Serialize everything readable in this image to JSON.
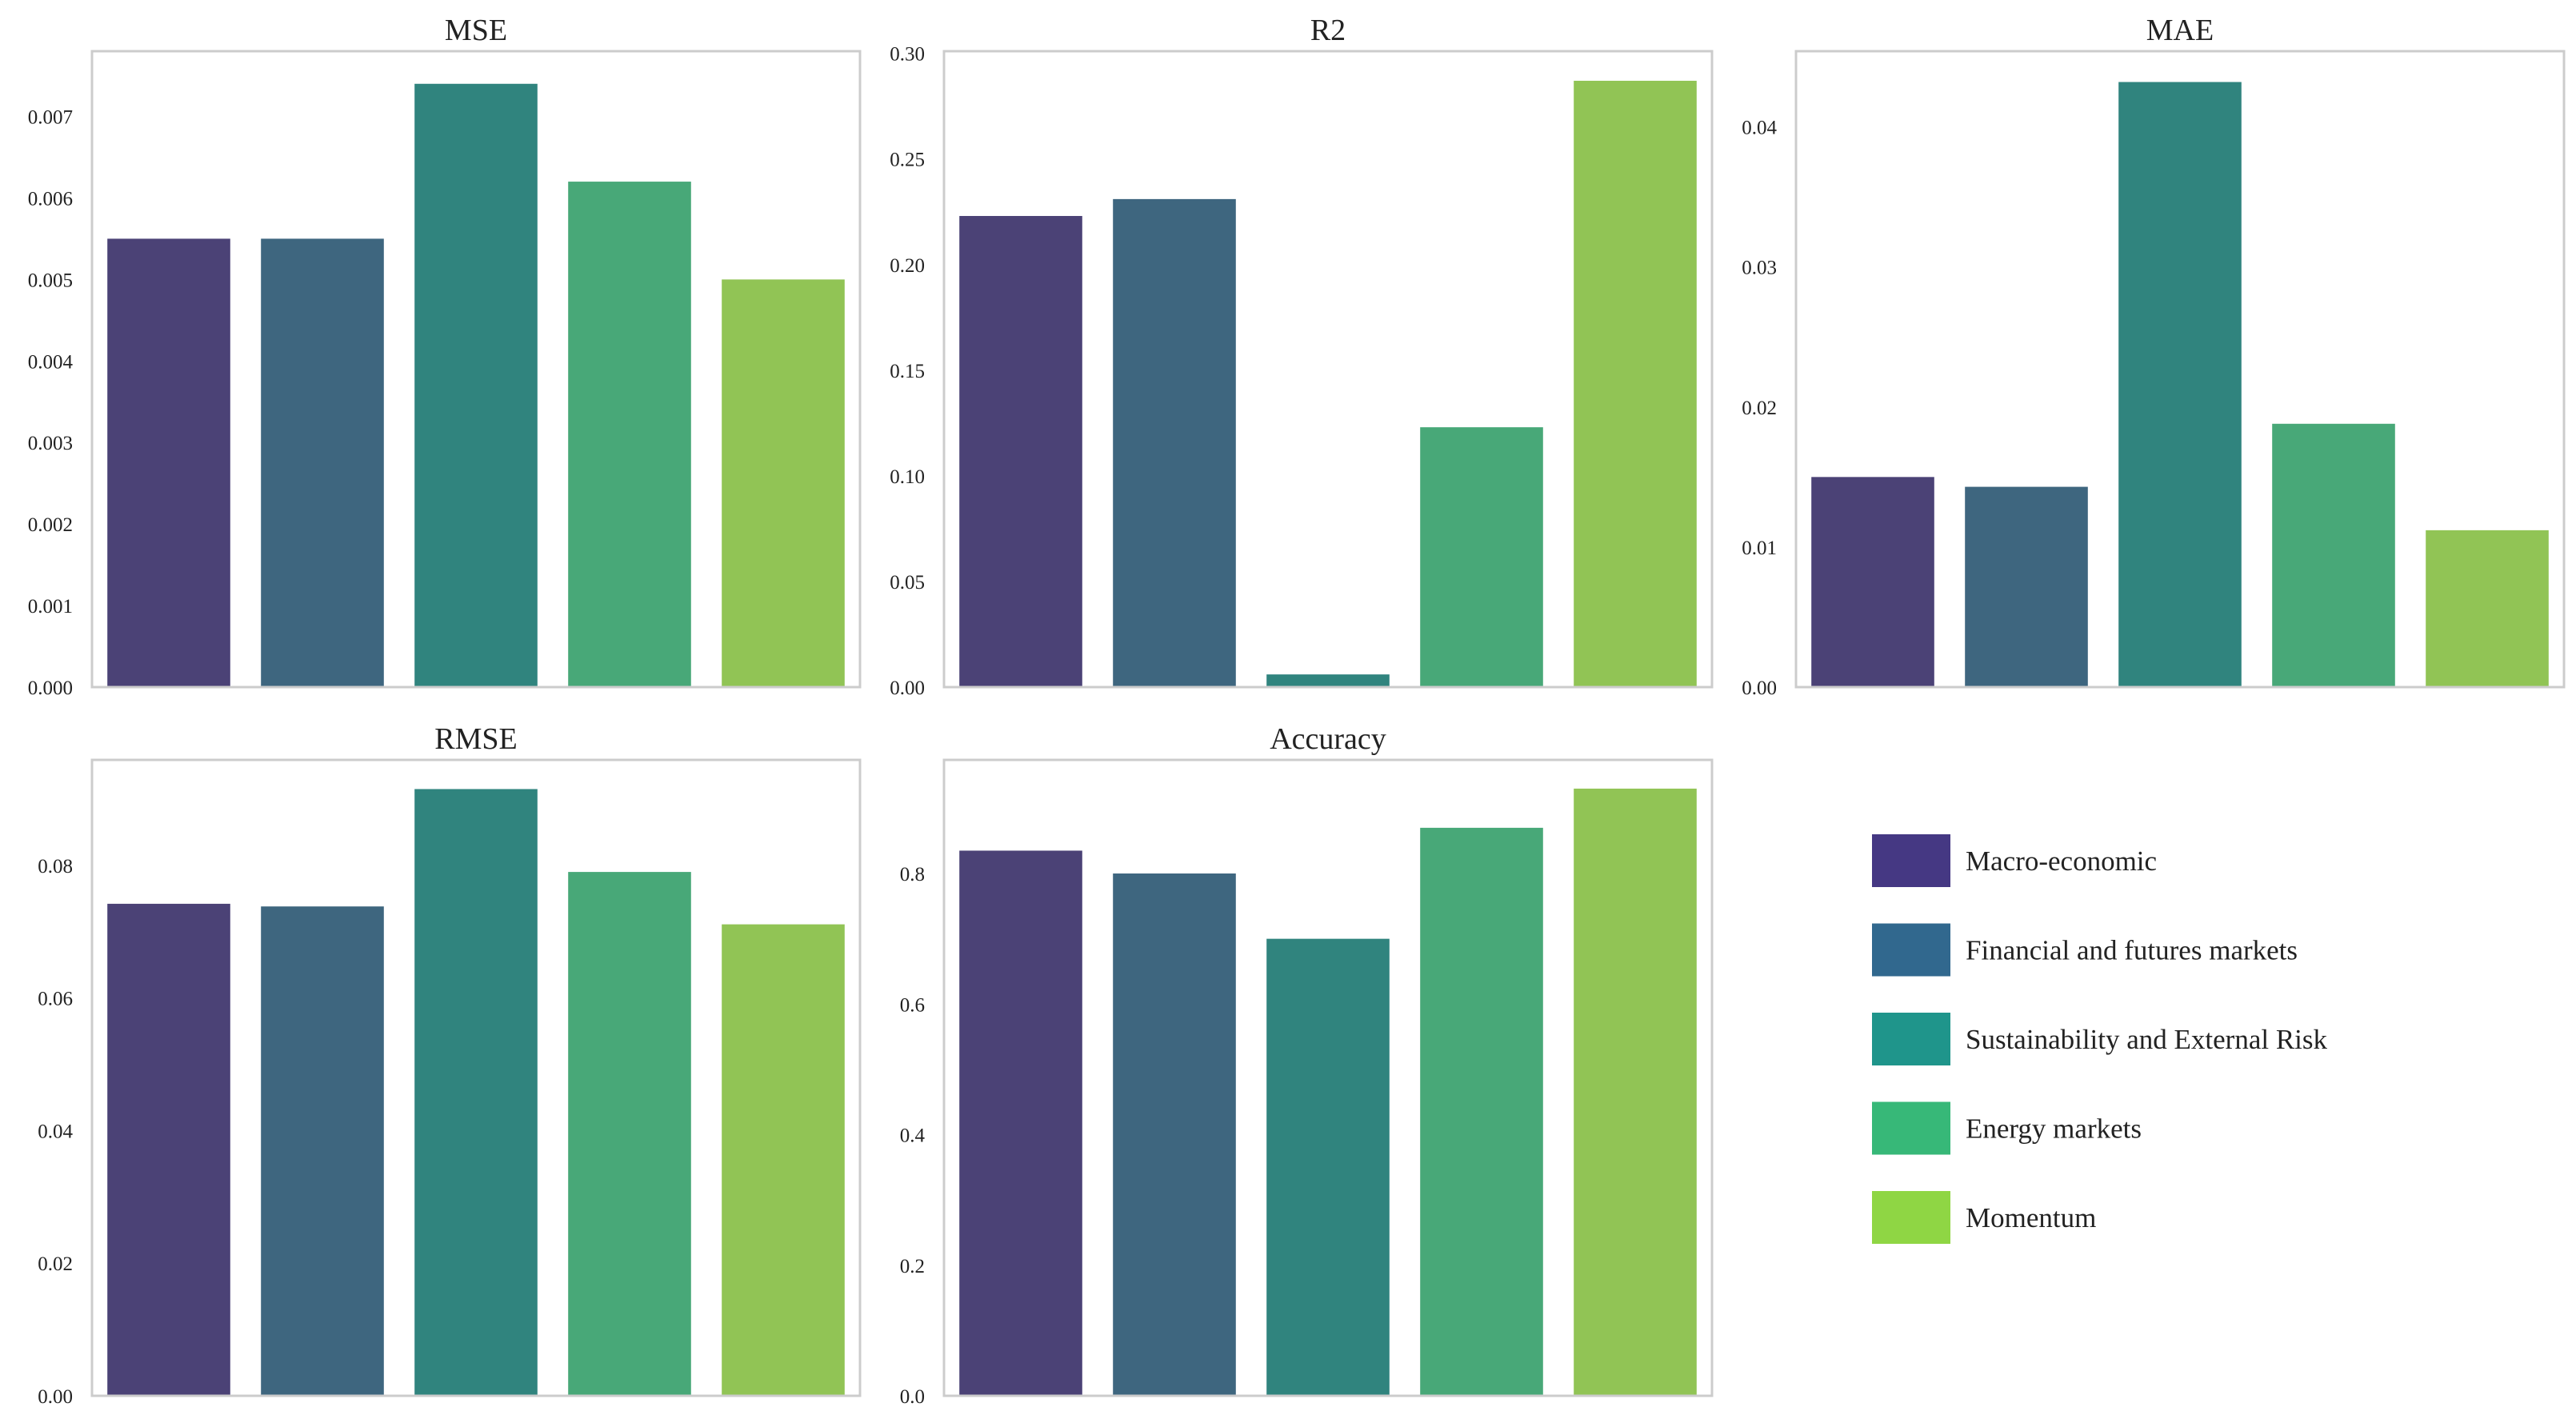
{
  "chart_data": [
    {
      "type": "bar",
      "title": "MSE",
      "categories": [
        "Macro-economic",
        "Financial and futures markets",
        "Sustainability and External Risk",
        "Energy markets",
        "Momentum"
      ],
      "values": [
        0.0055,
        0.0055,
        0.0074,
        0.0062,
        0.005
      ],
      "ylim": [
        0,
        0.0078
      ],
      "yticks": [
        0.0,
        0.001,
        0.002,
        0.003,
        0.004,
        0.005,
        0.006,
        0.007
      ],
      "ytick_labels": [
        "0.000",
        "0.001",
        "0.002",
        "0.003",
        "0.004",
        "0.005",
        "0.006",
        "0.007"
      ],
      "xlabel": "",
      "ylabel": "",
      "grid": false
    },
    {
      "type": "bar",
      "title": "R2",
      "categories": [
        "Macro-economic",
        "Financial and futures markets",
        "Sustainability and External Risk",
        "Energy markets",
        "Momentum"
      ],
      "values": [
        0.223,
        0.231,
        0.006,
        0.123,
        0.287
      ],
      "ylim": [
        0,
        0.301
      ],
      "yticks": [
        0.0,
        0.05,
        0.1,
        0.15,
        0.2,
        0.25,
        0.3
      ],
      "ytick_labels": [
        "0.00",
        "0.05",
        "0.10",
        "0.15",
        "0.20",
        "0.25",
        "0.30"
      ],
      "xlabel": "",
      "ylabel": "",
      "grid": false
    },
    {
      "type": "bar",
      "title": "MAE",
      "categories": [
        "Macro-economic",
        "Financial and futures markets",
        "Sustainability and External Risk",
        "Energy markets",
        "Momentum"
      ],
      "values": [
        0.015,
        0.0143,
        0.0432,
        0.0188,
        0.0112
      ],
      "ylim": [
        0,
        0.0454
      ],
      "yticks": [
        0.0,
        0.01,
        0.02,
        0.03,
        0.04
      ],
      "ytick_labels": [
        "0.00",
        "0.01",
        "0.02",
        "0.03",
        "0.04"
      ],
      "xlabel": "",
      "ylabel": "",
      "grid": false
    },
    {
      "type": "bar",
      "title": "RMSE",
      "categories": [
        "Macro-economic",
        "Financial and futures markets",
        "Sustainability and External Risk",
        "Energy markets",
        "Momentum"
      ],
      "values": [
        0.0742,
        0.0738,
        0.0915,
        0.079,
        0.0711
      ],
      "ylim": [
        0,
        0.0959
      ],
      "yticks": [
        0.0,
        0.02,
        0.04,
        0.06,
        0.08
      ],
      "ytick_labels": [
        "0.00",
        "0.02",
        "0.04",
        "0.06",
        "0.08"
      ],
      "xlabel": "",
      "ylabel": "",
      "grid": false
    },
    {
      "type": "bar",
      "title": "Accuracy",
      "categories": [
        "Macro-economic",
        "Financial and futures markets",
        "Sustainability and External Risk",
        "Energy markets",
        "Momentum"
      ],
      "values": [
        0.835,
        0.8,
        0.7,
        0.87,
        0.93
      ],
      "ylim": [
        0,
        0.974
      ],
      "yticks": [
        0.0,
        0.2,
        0.4,
        0.6,
        0.8
      ],
      "ytick_labels": [
        "0.0",
        "0.2",
        "0.4",
        "0.6",
        "0.8"
      ],
      "xlabel": "",
      "ylabel": "",
      "grid": false
    }
  ],
  "legend": {
    "placement": "lower-right",
    "items": [
      {
        "label": "Macro-economic",
        "color": "#453883",
        "bar_color": "#4b4276"
      },
      {
        "label": "Financial and futures markets",
        "color": "#31688e",
        "bar_color": "#3e667f"
      },
      {
        "label": "Sustainability and External Risk",
        "color": "#1f958b",
        "bar_color": "#30847e"
      },
      {
        "label": "Energy markets",
        "color": "#37b878",
        "bar_color": "#48a878"
      },
      {
        "label": "Momentum",
        "color": "#8fd644",
        "bar_color": "#91c455"
      }
    ]
  },
  "colors": {
    "frame": "#cccccc",
    "text": "#222222",
    "background": "#ffffff"
  }
}
